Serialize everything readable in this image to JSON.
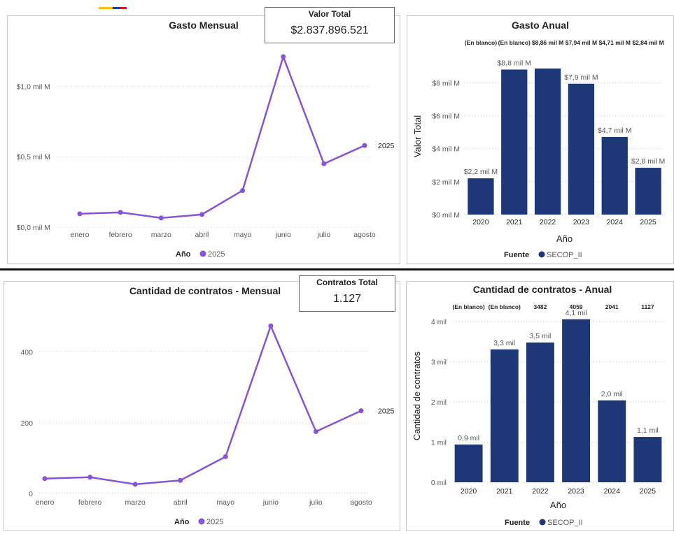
{
  "brand_colors": {
    "line": "#8754d6",
    "bar": "#1e3777",
    "grid": "#c8c8c8",
    "text": "#595959",
    "flag": [
      "#f4c20d",
      "#1e3c96",
      "#d01c1f"
    ]
  },
  "kpis": {
    "valor_total": {
      "title": "Valor Total",
      "value": "$2.837.896.521"
    },
    "contratos_total": {
      "title": "Contratos Total",
      "value": "1.127"
    }
  },
  "chart_data": [
    {
      "id": "gasto_mensual",
      "type": "line",
      "title": "Gasto Mensual",
      "categories": [
        "enero",
        "febrero",
        "marzo",
        "abril",
        "mayo",
        "junio",
        "julio",
        "agosto"
      ],
      "series": [
        {
          "name": "2025",
          "values": [
            0.095,
            0.105,
            0.065,
            0.09,
            0.26,
            1.21,
            0.45,
            0.58
          ]
        }
      ],
      "series_end_label": "2025",
      "yticks": [
        {
          "v": 0,
          "label": "$0,0 mil M"
        },
        {
          "v": 0.5,
          "label": "$0,5 mil M"
        },
        {
          "v": 1.0,
          "label": "$1,0 mil M"
        }
      ],
      "ylim": [
        0,
        1.3
      ],
      "legend": {
        "title": "Año",
        "entries": [
          "2025"
        ],
        "position": "bottom"
      },
      "grid": true
    },
    {
      "id": "gasto_anual",
      "type": "bar",
      "title": "Gasto Anual",
      "categories": [
        "2020",
        "2021",
        "2022",
        "2023",
        "2024",
        "2025"
      ],
      "values": [
        2.2,
        8.8,
        8.86,
        7.94,
        4.71,
        2.84
      ],
      "data_labels": [
        "$2,2 mil M",
        "$8,8 mil M",
        "",
        "$7,9 mil M",
        "$4,7 mil M",
        "$2,8 mil M"
      ],
      "top_labels": [
        "(En blanco)",
        "(En blanco)",
        "$8,86 mil M",
        "$7,94 mil M",
        "$4,71 mil M",
        "$2,84 mil M"
      ],
      "xlabel": "Año",
      "ylabel": "Valor Total",
      "yticks": [
        {
          "v": 0,
          "label": "$0 mil M"
        },
        {
          "v": 2,
          "label": "$2 mil M"
        },
        {
          "v": 4,
          "label": "$4 mil M"
        },
        {
          "v": 6,
          "label": "$6 mil M"
        },
        {
          "v": 8,
          "label": "$8 mil M"
        }
      ],
      "ylim": [
        0,
        9.5
      ],
      "legend": {
        "title": "Fuente",
        "entries": [
          "SECOP_II"
        ],
        "position": "bottom"
      },
      "grid": true
    },
    {
      "id": "contratos_mensual",
      "type": "line",
      "title": "Cantidad de contratos - Mensual",
      "categories": [
        "enero",
        "febrero",
        "marzo",
        "abril",
        "mayo",
        "junio",
        "julio",
        "agosto"
      ],
      "series": [
        {
          "name": "2025",
          "values": [
            42,
            46,
            26,
            37,
            104,
            474,
            175,
            234
          ]
        }
      ],
      "series_end_label": "2025",
      "yticks": [
        {
          "v": 0,
          "label": "0"
        },
        {
          "v": 200,
          "label": "200"
        },
        {
          "v": 400,
          "label": "400"
        }
      ],
      "ylim": [
        0,
        520
      ],
      "legend": {
        "title": "Año",
        "entries": [
          "2025"
        ],
        "position": "bottom"
      },
      "grid": true
    },
    {
      "id": "contratos_anual",
      "type": "bar",
      "title": "Cantidad de contratos - Anual",
      "categories": [
        "2020",
        "2021",
        "2022",
        "2023",
        "2024",
        "2025"
      ],
      "values": [
        0.94,
        3.31,
        3.48,
        4.06,
        2.04,
        1.13
      ],
      "data_labels": [
        "0,9 mil",
        "3,3 mil",
        "3,5 mil",
        "4,1 mil",
        "2,0 mil",
        "1,1 mil"
      ],
      "top_labels": [
        "(En blanco)",
        "(En blanco)",
        "3482",
        "4059",
        "2041",
        "1127"
      ],
      "xlabel": "Año",
      "ylabel": "Cantidad de contratos",
      "yticks": [
        {
          "v": 0,
          "label": "0 mil"
        },
        {
          "v": 1,
          "label": "1 mil"
        },
        {
          "v": 2,
          "label": "2 mil"
        },
        {
          "v": 3,
          "label": "3 mil"
        },
        {
          "v": 4,
          "label": "4 mil"
        }
      ],
      "ylim": [
        0,
        4.3
      ],
      "legend": {
        "title": "Fuente",
        "entries": [
          "SECOP_II"
        ],
        "position": "bottom"
      },
      "grid": true
    }
  ]
}
